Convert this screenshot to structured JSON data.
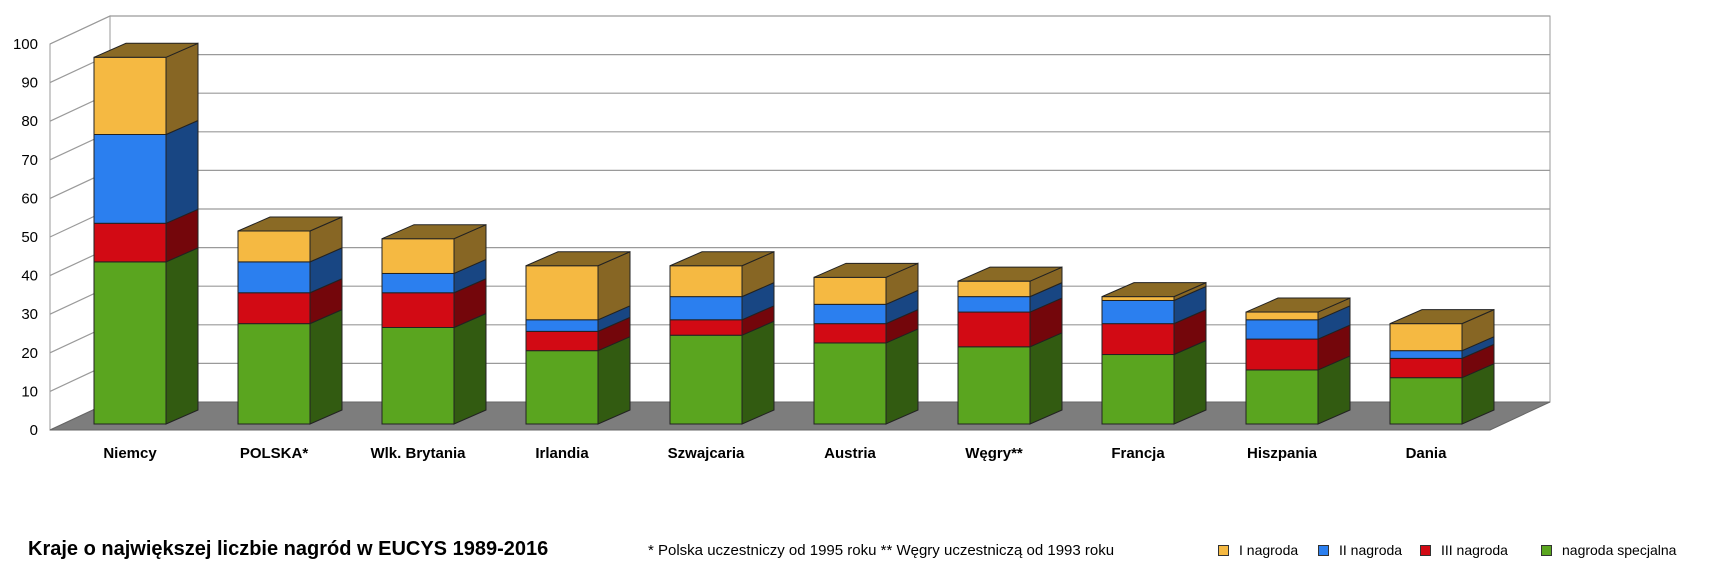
{
  "chart_data": {
    "type": "bar",
    "stacked": true,
    "three_d": true,
    "title": "Kraje o największej liczbie nagród w EUCYS 1989-2016",
    "footnote": "* Polska uczestniczy od 1995 roku ** Węgry uczestniczą od 1993 roku",
    "categories": [
      "Niemcy",
      "POLSKA*",
      "Wlk. Brytania",
      "Irlandia",
      "Szwajcaria",
      "Austria",
      "Węgry**",
      "Francja",
      "Hiszpania",
      "Dania"
    ],
    "series": [
      {
        "name": "nagroda specjalna",
        "color": "#5aa51f",
        "values": [
          42,
          26,
          25,
          19,
          23,
          21,
          20,
          18,
          14,
          12
        ]
      },
      {
        "name": "III nagroda",
        "color": "#d20a14",
        "values": [
          10,
          8,
          9,
          5,
          4,
          5,
          9,
          8,
          8,
          5
        ]
      },
      {
        "name": "II nagroda",
        "color": "#2b7fef",
        "values": [
          23,
          8,
          5,
          3,
          6,
          5,
          4,
          6,
          5,
          2
        ]
      },
      {
        "name": "I nagroda",
        "color": "#f5b942",
        "values": [
          20,
          8,
          9,
          14,
          8,
          7,
          4,
          1,
          2,
          7
        ]
      }
    ],
    "legend_order": [
      "I nagroda",
      "II nagroda",
      "III nagroda",
      "nagroda specjalna"
    ],
    "ylim": [
      0,
      100
    ],
    "yticks": [
      0,
      10,
      20,
      30,
      40,
      50,
      60,
      70,
      80,
      90,
      100
    ],
    "grid": true,
    "legend_position": "bottom-right",
    "xlabel": "",
    "ylabel": ""
  }
}
